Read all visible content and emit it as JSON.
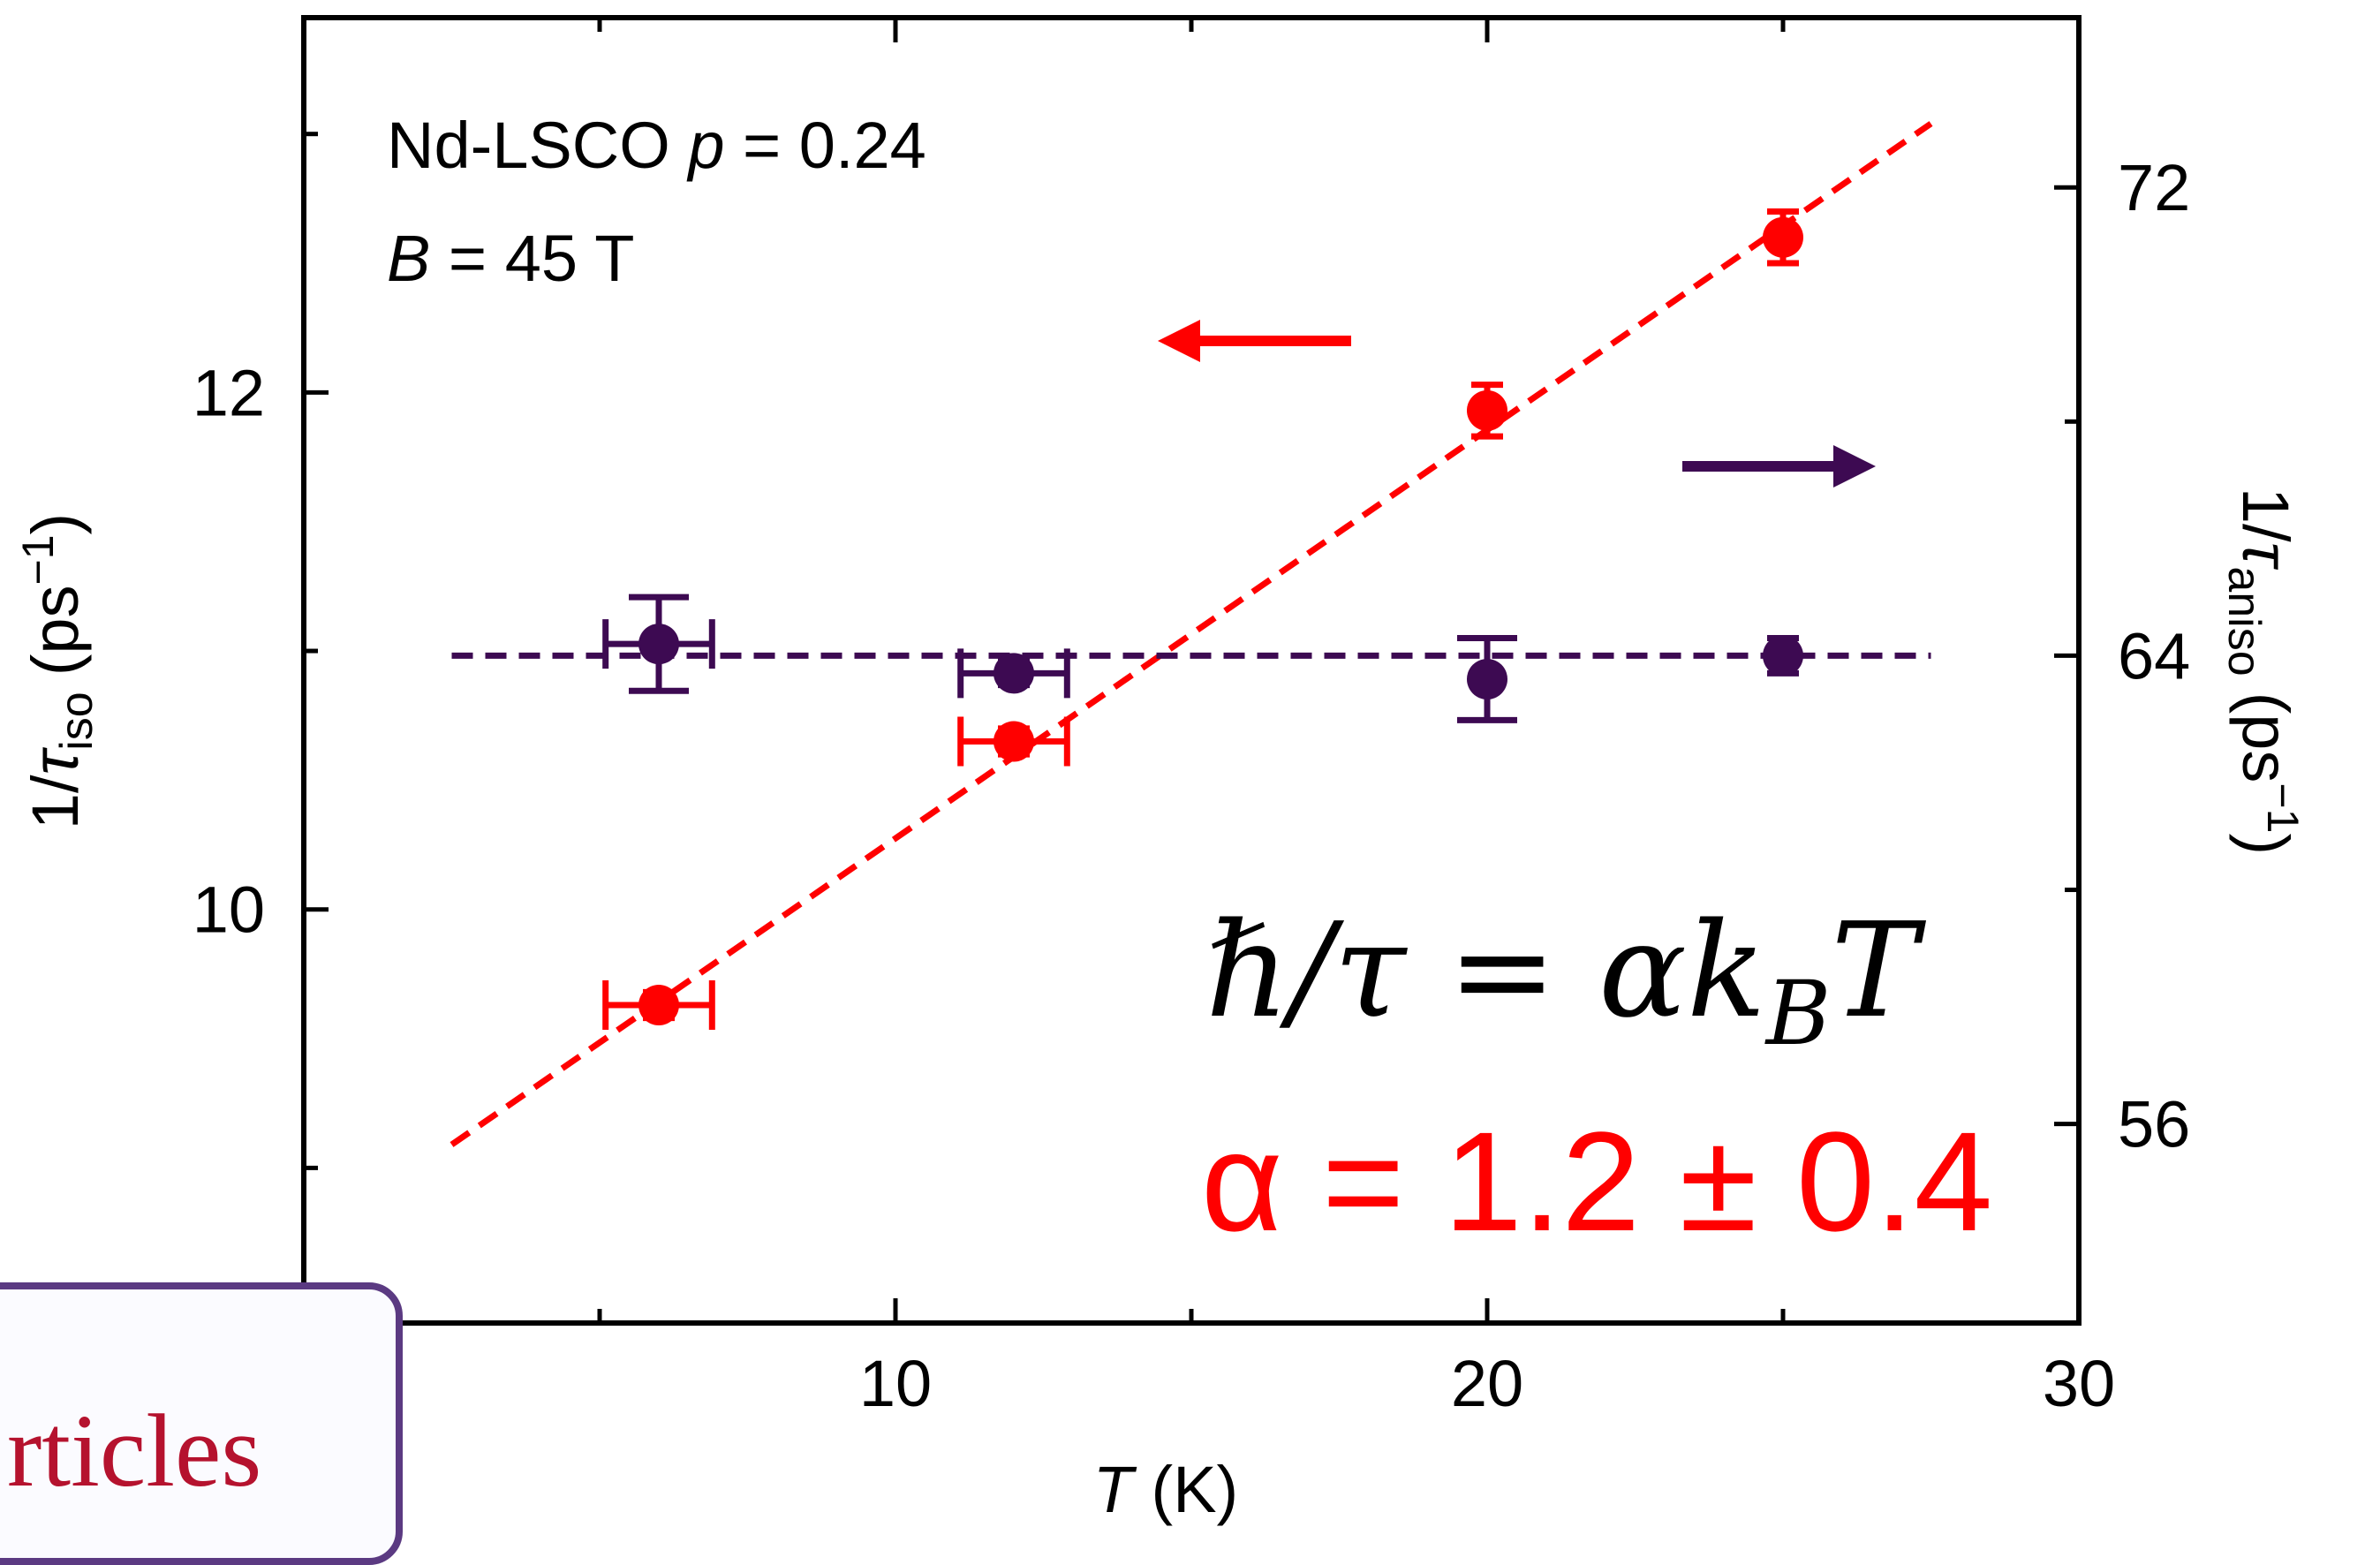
{
  "callout": {
    "text": "rticles"
  },
  "chart_data": {
    "type": "scatter",
    "xlabel": {
      "var": "T",
      "unit": " (K)"
    },
    "ylabel_left": {
      "prefix": "1/",
      "var": "τ",
      "sub": "iso",
      "unit": "(ps",
      "exp": "−1",
      "close": ")"
    },
    "ylabel_right": {
      "prefix": "1/",
      "var": "τ",
      "sub": "aniso",
      "unit": "(ps",
      "exp": "−1",
      "close": ")"
    },
    "xlim": [
      0,
      30
    ],
    "ylim_left": [
      8.4,
      13.45
    ],
    "ylim_right": [
      52.6,
      74.9
    ],
    "x_ticks": [
      10,
      20,
      30
    ],
    "x_ticks_labeled": [
      "10",
      "20",
      "30"
    ],
    "y_left_ticks": [
      10,
      12
    ],
    "y_left_tick_labels": [
      "10",
      "12"
    ],
    "y_right_ticks": [
      56,
      64,
      72
    ],
    "y_right_tick_labels": [
      "56",
      "64",
      "72"
    ],
    "annotations": {
      "sample": {
        "name": "Nd-LSCO ",
        "p_var": "p",
        "p_val": " = 0.24"
      },
      "field": {
        "var": "B",
        "val": " = 45 T"
      },
      "formula": {
        "lhs": "ℏ/τ = αk",
        "sub": "B",
        "rhs": "T"
      },
      "alpha": {
        "text": "α = 1.2 ± 0.4"
      }
    },
    "colors": {
      "iso": "#ff0000",
      "aniso": "#3d0a52",
      "axis": "#000000"
    },
    "series": [
      {
        "name": "1/τ_iso",
        "axis": "left",
        "color": "#ff0000",
        "points": [
          {
            "x": 6,
            "y": 9.63,
            "xerr": 0.9,
            "yerr": 0.05
          },
          {
            "x": 12,
            "y": 10.65,
            "xerr": 0.9,
            "yerr": 0.05
          },
          {
            "x": 20,
            "y": 11.93,
            "xerr": 0.05,
            "yerr": 0.1
          },
          {
            "x": 25,
            "y": 12.6,
            "xerr": 0.05,
            "yerr": 0.1
          }
        ],
        "fit": {
          "x": [
            2.5,
            27.5
          ],
          "y": [
            9.09,
            13.04
          ]
        }
      },
      {
        "name": "1/τ_aniso",
        "axis": "right",
        "color": "#3d0a52",
        "points": [
          {
            "x": 6,
            "y": 64.2,
            "xerr": 0.9,
            "yerr": 0.8
          },
          {
            "x": 12,
            "y": 63.7,
            "xerr": 0.9,
            "yerr": 0.2
          },
          {
            "x": 20,
            "y": 63.6,
            "xerr": 0.05,
            "yerr": 0.7
          },
          {
            "x": 25,
            "y": 64.0,
            "xerr": 0.05,
            "yerr": 0.3
          }
        ],
        "fit": {
          "x": [
            2.5,
            27.5
          ],
          "y": [
            64.0,
            64.0
          ]
        }
      }
    ]
  }
}
